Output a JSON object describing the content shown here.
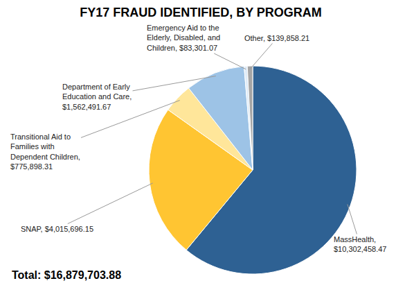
{
  "chart_data": {
    "type": "pie",
    "title": "FY17 FRAUD IDENTIFIED, BY PROGRAM",
    "categories": [
      "MassHealth",
      "SNAP",
      "Transitional Aid to Families with Dependent Children",
      "Department of Early Education and Care",
      "Emergency Aid to the Elderly, Disabled, and Children",
      "Other"
    ],
    "values": [
      10302458.47,
      4015696.15,
      775898.31,
      1562491.67,
      83301.07,
      139858.21
    ],
    "value_labels": [
      "MassHealth, $10,302,458.47",
      "SNAP, $4,015,696.15",
      "Transitional Aid to Families with Dependent Children, $775,898.31",
      "Department of Early Education and Care, $1,562,491.67",
      "Emergency Aid to the Elderly, Disabled, and Children, $83,301.07",
      "Other, $139,858.21"
    ],
    "colors": [
      "#2E6193",
      "#FFC532",
      "#FFE69A",
      "#9DC3E6",
      "#DEEBF7",
      "#A5A5A5"
    ],
    "data_labels": true,
    "annotations": [
      {
        "text": "Total: $16,879,703.88"
      }
    ]
  }
}
